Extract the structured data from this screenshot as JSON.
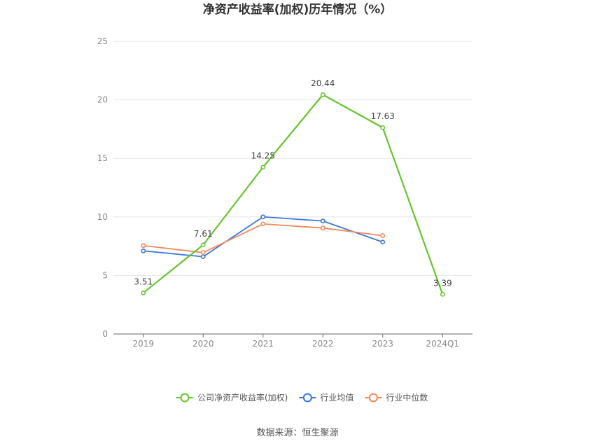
{
  "chart_data": {
    "type": "line",
    "title": "净资产收益率(加权)历年情况（%）",
    "categories": [
      "2019",
      "2020",
      "2021",
      "2022",
      "2023",
      "2024Q1"
    ],
    "ylim": [
      0,
      25
    ],
    "yticks": [
      0,
      5,
      10,
      15,
      20,
      25
    ],
    "grid": true,
    "legend": "bottom",
    "series": [
      {
        "name": "公司净资产收益率(加权)",
        "color": "#66c431",
        "values": [
          3.51,
          7.61,
          14.25,
          20.44,
          17.63,
          3.39
        ],
        "labels": [
          "3.51",
          "7.61",
          "14.25",
          "20.44",
          "17.63",
          "3.39"
        ]
      },
      {
        "name": "行业均值",
        "color": "#3b78d8",
        "values": [
          7.1,
          6.6,
          10.0,
          9.65,
          7.85,
          null
        ]
      },
      {
        "name": "行业中位数",
        "color": "#f08a5d",
        "values": [
          7.55,
          6.95,
          9.4,
          9.05,
          8.4,
          null
        ]
      }
    ]
  },
  "source": "数据来源：恒生聚源"
}
